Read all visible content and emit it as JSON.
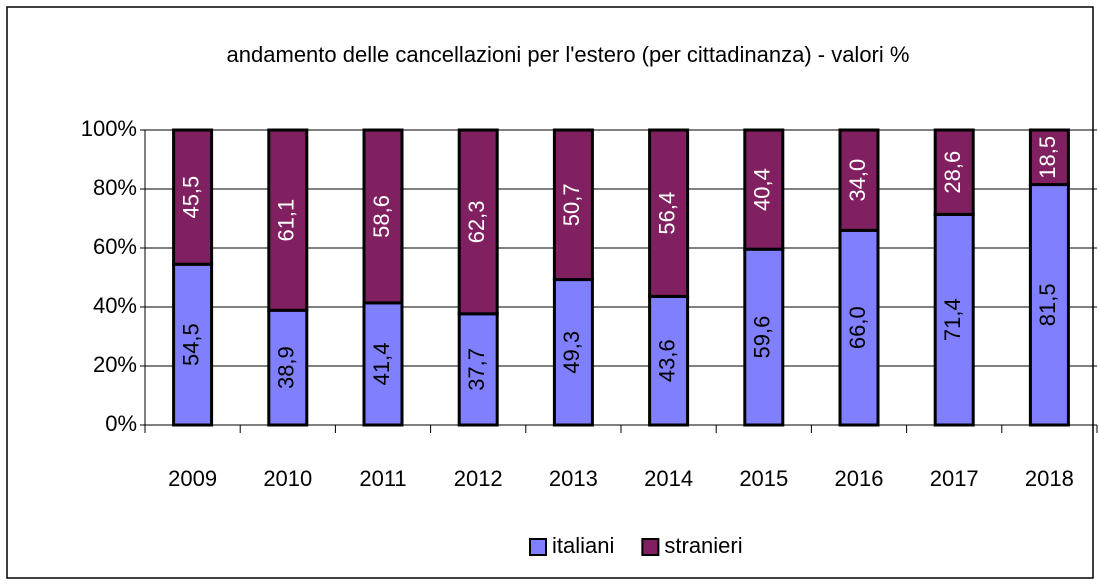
{
  "chart_data": {
    "type": "stacked_bar",
    "title": "andamento delle cancellazioni per l'estero (per cittadinanza) - valori %",
    "categories": [
      "2009",
      "2010",
      "2011",
      "2012",
      "2013",
      "2014",
      "2015",
      "2016",
      "2017",
      "2018"
    ],
    "series": [
      {
        "name": "italiani",
        "color": "#8080ff",
        "values": [
          54.5,
          38.9,
          41.4,
          37.7,
          49.3,
          43.6,
          59.6,
          66.0,
          71.4,
          81.5
        ],
        "value_labels": [
          "54,5",
          "38,9",
          "41,4",
          "37,7",
          "49,3",
          "43,6",
          "59,6",
          "66,0",
          "71,4",
          "81,5"
        ],
        "label_color": "#000000"
      },
      {
        "name": "stranieri",
        "color": "#802060",
        "values": [
          45.5,
          61.1,
          58.6,
          62.3,
          50.7,
          56.4,
          40.4,
          34.0,
          28.6,
          18.5
        ],
        "value_labels": [
          "45,5",
          "61,1",
          "58,6",
          "62,3",
          "50,7",
          "56,4",
          "40,4",
          "34,0",
          "28,6",
          "18,5"
        ],
        "label_color": "#ffffff"
      }
    ],
    "ylim": [
      0,
      100
    ],
    "yticks": [
      {
        "value": 0,
        "label": "0%"
      },
      {
        "value": 20,
        "label": "20%"
      },
      {
        "value": 40,
        "label": "40%"
      },
      {
        "value": 60,
        "label": "60%"
      },
      {
        "value": 80,
        "label": "80%"
      },
      {
        "value": 100,
        "label": "100%"
      }
    ],
    "grid": true,
    "legend": "bottom"
  }
}
